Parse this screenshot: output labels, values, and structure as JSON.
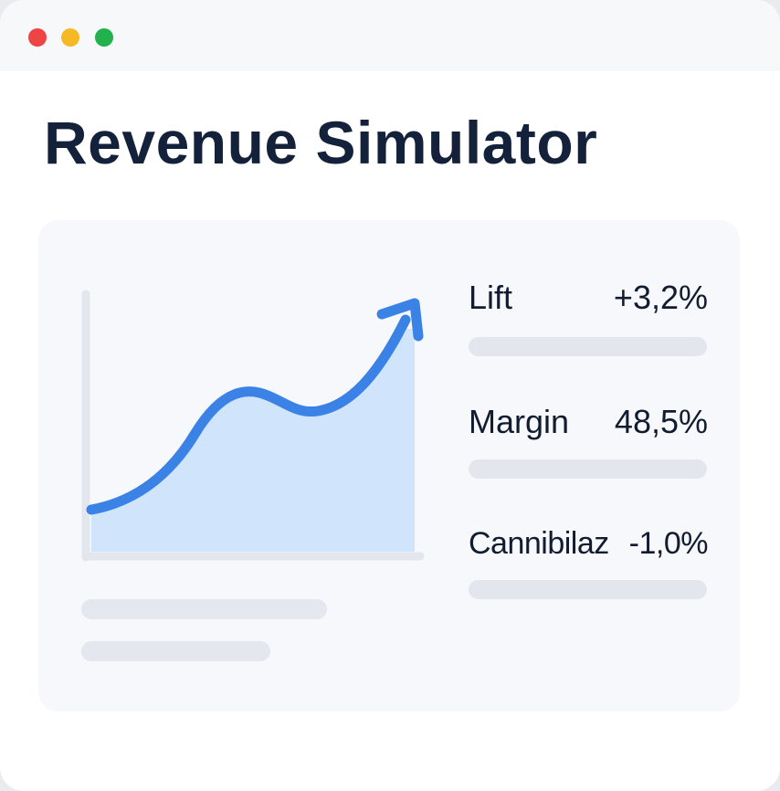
{
  "window": {
    "controls": [
      {
        "name": "close",
        "color": "#ee4444"
      },
      {
        "name": "minimize",
        "color": "#f6b926"
      },
      {
        "name": "maximize",
        "color": "#22b14c"
      }
    ]
  },
  "header": {
    "title": "Revenue Simulator"
  },
  "chart": {
    "type": "area",
    "icon": "trend-up-arrow-icon",
    "line_color": "#3b82e6",
    "fill_color": "#d0e4fb",
    "axis_color": "#e3e6ed"
  },
  "metrics": [
    {
      "label": "Lift",
      "value": "+3,2%"
    },
    {
      "label": "Margin",
      "value": "48,5%"
    },
    {
      "label": "Cannibilaz",
      "value": "-1,0%"
    }
  ],
  "colors": {
    "title": "#14213a",
    "card_background": "#f7f8fb",
    "placeholder_bar": "#e3e6ed"
  }
}
